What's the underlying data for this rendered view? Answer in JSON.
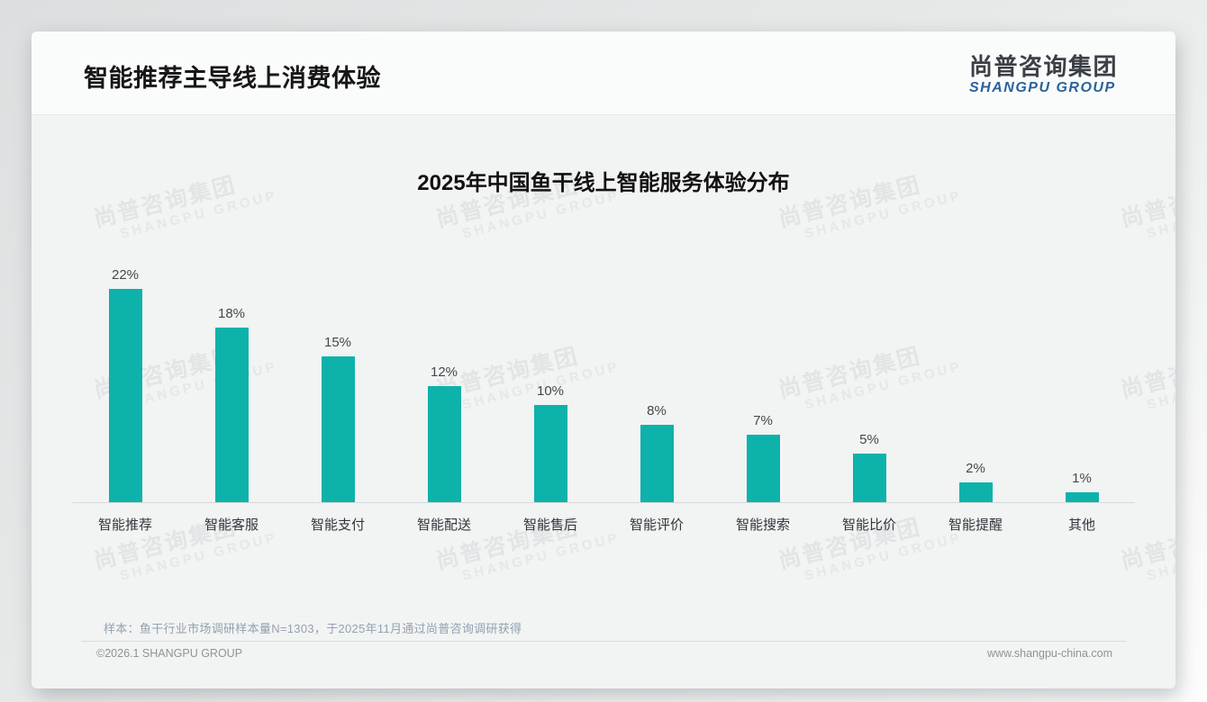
{
  "header": {
    "title": "智能推荐主导线上消费体验"
  },
  "logo": {
    "cn": "尚普咨询集团",
    "en": "SHANGPU GROUP"
  },
  "watermark": {
    "cn": "尚普咨询集团",
    "en": "SHANGPU GROUP"
  },
  "note": "样本：鱼干行业市场调研样本量N=1303，于2025年11月通过尚普咨询调研获得",
  "footer": {
    "left": "©2026.1 SHANGPU GROUP",
    "right": "www.shangpu-china.com"
  },
  "chart_data": {
    "type": "bar",
    "title": "2025年中国鱼干线上智能服务体验分布",
    "categories": [
      "智能推荐",
      "智能客服",
      "智能支付",
      "智能配送",
      "智能售后",
      "智能评价",
      "智能搜索",
      "智能比价",
      "智能提醒",
      "其他"
    ],
    "values": [
      22,
      18,
      15,
      12,
      10,
      8,
      7,
      5,
      2,
      1
    ],
    "value_suffix": "%",
    "bar_color": "#0db2aa",
    "ylim": [
      0,
      24
    ],
    "grid": false,
    "legend": false,
    "value_labels": true,
    "xlabel": "",
    "ylabel": ""
  }
}
